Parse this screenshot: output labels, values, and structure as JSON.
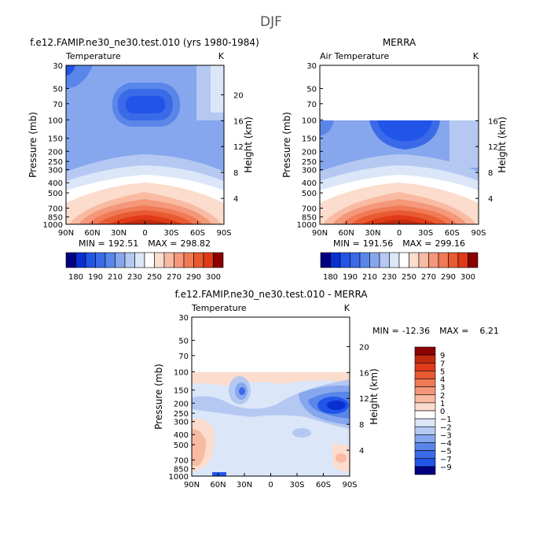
{
  "figure_title": "DJF",
  "colors": {
    "blue_9": "#000080",
    "blue_7": "#0a2fd0",
    "blue_5": "#2155e8",
    "blue_4": "#3a6ae8",
    "blue_3": "#5a86ea",
    "blue_2": "#86a7ee",
    "blue_1": "#b4c8f2",
    "blue_0": "#dbe6f8",
    "white": "#ffffff",
    "red_1": "#fbdccd",
    "red_2": "#f8bba2",
    "red_3": "#f4977a",
    "red_4": "#f07a55",
    "red_5": "#e85a32",
    "red_6": "#e03a18",
    "red_7": "#c22a10",
    "red_9": "#8b0000"
  },
  "chart_data": [
    {
      "type": "contour",
      "id": "model",
      "title": "f.e12.FAMIP.ne30_ne30.test.010 (yrs 1980-1984)",
      "left_label": "Temperature",
      "right_label": "K",
      "ylabel": "Pressure (mb)",
      "y2label": "Height (km)",
      "y_ticks": [
        "30",
        "50",
        "70",
        "100",
        "150",
        "200",
        "250",
        "300",
        "400",
        "500",
        "700",
        "850",
        "1000"
      ],
      "y_tick_values": [
        30,
        50,
        70,
        100,
        150,
        200,
        250,
        300,
        400,
        500,
        700,
        850,
        1000
      ],
      "y2_ticks": [
        "20",
        "16",
        "12",
        "8",
        "4"
      ],
      "x_ticks": [
        "90N",
        "60N",
        "30N",
        "0",
        "30S",
        "60S",
        "90S"
      ],
      "x_tick_values": [
        90,
        60,
        30,
        0,
        -30,
        -60,
        -90
      ],
      "ylim": [
        30,
        1000
      ],
      "xlim": [
        90,
        -90
      ],
      "stats": {
        "min_label": "MIN =",
        "min": "192.51",
        "max_label": "MAX =",
        "max": "298.82"
      },
      "data_top_pressure": 30,
      "levels": [
        180,
        190,
        200,
        210,
        220,
        230,
        240,
        250,
        260,
        270,
        280,
        290,
        300
      ],
      "colorbar_labels": [
        "180",
        "190",
        "210",
        "230",
        "250",
        "270",
        "290",
        "300"
      ]
    },
    {
      "type": "contour",
      "id": "obs",
      "title": "MERRA",
      "left_label": "Air Temperature",
      "right_label": "K",
      "ylabel": "Pressure (mb)",
      "y2label": "Height (km)",
      "y_ticks": [
        "30",
        "50",
        "70",
        "100",
        "150",
        "200",
        "250",
        "300",
        "400",
        "500",
        "700",
        "850",
        "1000"
      ],
      "y_tick_values": [
        30,
        50,
        70,
        100,
        150,
        200,
        250,
        300,
        400,
        500,
        700,
        850,
        1000
      ],
      "y2_ticks": [
        "16",
        "12",
        "8",
        "4"
      ],
      "x_ticks": [
        "90N",
        "60N",
        "30N",
        "0",
        "30S",
        "60S",
        "90S"
      ],
      "x_tick_values": [
        90,
        60,
        30,
        0,
        -30,
        -60,
        -90
      ],
      "ylim": [
        30,
        1000
      ],
      "xlim": [
        90,
        -90
      ],
      "stats": {
        "min_label": "MIN =",
        "min": "191.56",
        "max_label": "MAX =",
        "max": "299.16"
      },
      "data_top_pressure": 100,
      "levels": [
        180,
        190,
        200,
        210,
        220,
        230,
        240,
        250,
        260,
        270,
        280,
        290,
        300
      ],
      "colorbar_labels": [
        "180",
        "190",
        "210",
        "230",
        "250",
        "270",
        "290",
        "300"
      ]
    },
    {
      "type": "contour",
      "id": "diff",
      "title": "f.e12.FAMIP.ne30_ne30.test.010 - MERRA",
      "left_label": "Temperature",
      "right_label": "K",
      "ylabel": "Pressure (mb)",
      "y2label": "Height (km)",
      "y_ticks": [
        "30",
        "50",
        "70",
        "100",
        "150",
        "200",
        "250",
        "300",
        "400",
        "500",
        "700",
        "850",
        "1000"
      ],
      "y_tick_values": [
        30,
        50,
        70,
        100,
        150,
        200,
        250,
        300,
        400,
        500,
        700,
        850,
        1000
      ],
      "y2_ticks": [
        "20",
        "16",
        "12",
        "8",
        "4"
      ],
      "x_ticks": [
        "90N",
        "60N",
        "30N",
        "0",
        "30S",
        "60S",
        "90S"
      ],
      "x_tick_values": [
        90,
        60,
        30,
        0,
        -30,
        -60,
        -90
      ],
      "ylim": [
        30,
        1000
      ],
      "xlim": [
        90,
        -90
      ],
      "stats": {
        "min_label": "MIN =",
        "min": "-12.36",
        "max_label": "MAX =",
        "max": "6.21"
      },
      "data_top_pressure": 100,
      "levels": [
        -9,
        -7,
        -5,
        -4,
        -3,
        -2,
        -1,
        0,
        1,
        2,
        3,
        4,
        5,
        7,
        9
      ],
      "colorbar_labels": [
        "9",
        "7",
        "5",
        "4",
        "3",
        "2",
        "1",
        "0",
        "−1",
        "−2",
        "−3",
        "−4",
        "−5",
        "−7",
        "−9"
      ]
    }
  ]
}
